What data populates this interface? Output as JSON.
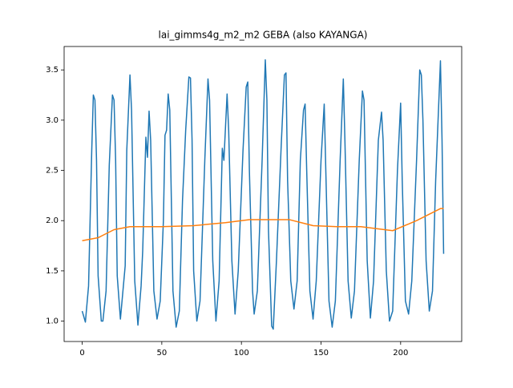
{
  "chart_data": {
    "type": "line",
    "title": "lai_gimms4g_m2_m2 GEBA (also KAYANGA)",
    "xlim": [
      -11.35,
      238.35
    ],
    "ylim": [
      0.797,
      3.733
    ],
    "xticks": [
      0,
      50,
      100,
      150,
      200
    ],
    "yticks": [
      {
        "value": 1.0,
        "label": "1.0"
      },
      {
        "value": 1.5,
        "label": "1.5"
      },
      {
        "value": 2.0,
        "label": "2.0"
      },
      {
        "value": 2.5,
        "label": "2.5"
      },
      {
        "value": 3.0,
        "label": "3.0"
      },
      {
        "value": 3.5,
        "label": "3.5"
      }
    ],
    "series": [
      {
        "color": "#1f77b4",
        "x": [
          0,
          2,
          4,
          6,
          7,
          8,
          9,
          10,
          12,
          13,
          15,
          17,
          19,
          20,
          21,
          22,
          24,
          27,
          28,
          30,
          31,
          33,
          35,
          37,
          38,
          40,
          41,
          42,
          43,
          45,
          47,
          49,
          51,
          52,
          53,
          54,
          55,
          57,
          59,
          61,
          63,
          65,
          67,
          68,
          69,
          70,
          72,
          74,
          77,
          79,
          80,
          82,
          84,
          86,
          88,
          89,
          91,
          92,
          94,
          96,
          98,
          101,
          103,
          104,
          105,
          107,
          108,
          110,
          113,
          115,
          116,
          117,
          119,
          120,
          122,
          125,
          127,
          128,
          129,
          131,
          133,
          135,
          137,
          139,
          140,
          141,
          143,
          145,
          147,
          150,
          152,
          153,
          155,
          157,
          159,
          162,
          164,
          165,
          167,
          169,
          171,
          174,
          176,
          177,
          179,
          181,
          183,
          186,
          188,
          189,
          191,
          193,
          195,
          198,
          200,
          201,
          203,
          205,
          207,
          210,
          212,
          213,
          214,
          216,
          218,
          220,
          222,
          225,
          226,
          227
        ],
        "values": [
          1.1,
          0.99,
          1.35,
          2.7,
          3.25,
          3.2,
          2.6,
          1.45,
          1.0,
          1.0,
          1.3,
          2.55,
          3.25,
          3.2,
          2.6,
          1.45,
          1.02,
          1.55,
          2.7,
          3.45,
          3.1,
          1.4,
          0.96,
          1.35,
          1.7,
          2.83,
          2.63,
          3.09,
          2.8,
          1.3,
          1.02,
          1.2,
          2.0,
          2.85,
          2.9,
          3.26,
          3.1,
          1.3,
          0.94,
          1.1,
          2.2,
          2.9,
          3.43,
          3.42,
          2.8,
          1.5,
          1.0,
          1.2,
          2.6,
          3.41,
          3.2,
          1.6,
          1.0,
          1.4,
          2.72,
          2.6,
          3.26,
          2.9,
          1.6,
          1.07,
          1.5,
          2.7,
          3.33,
          3.38,
          2.5,
          1.3,
          1.07,
          1.3,
          2.6,
          3.6,
          3.2,
          1.9,
          0.95,
          0.92,
          1.6,
          2.75,
          3.45,
          3.47,
          2.4,
          1.4,
          1.12,
          1.4,
          2.6,
          3.1,
          3.16,
          2.5,
          1.3,
          1.02,
          1.4,
          2.6,
          3.16,
          2.5,
          1.2,
          0.94,
          1.2,
          2.6,
          3.41,
          2.8,
          1.4,
          1.03,
          1.3,
          2.6,
          3.29,
          3.2,
          1.6,
          1.03,
          1.4,
          2.8,
          3.08,
          2.8,
          1.5,
          1.0,
          1.1,
          2.5,
          3.17,
          2.4,
          1.2,
          1.07,
          1.4,
          2.6,
          3.5,
          3.45,
          3.0,
          1.6,
          1.1,
          1.3,
          2.4,
          3.59,
          2.8,
          1.67
        ]
      },
      {
        "color": "#ff7f0e",
        "x": [
          0,
          10,
          20,
          30,
          50,
          70,
          90,
          105,
          130,
          145,
          160,
          175,
          195,
          210,
          225,
          227
        ],
        "values": [
          1.8,
          1.83,
          1.91,
          1.94,
          1.94,
          1.95,
          1.98,
          2.01,
          2.01,
          1.95,
          1.94,
          1.94,
          1.9,
          2.0,
          2.12,
          2.12
        ]
      }
    ]
  }
}
